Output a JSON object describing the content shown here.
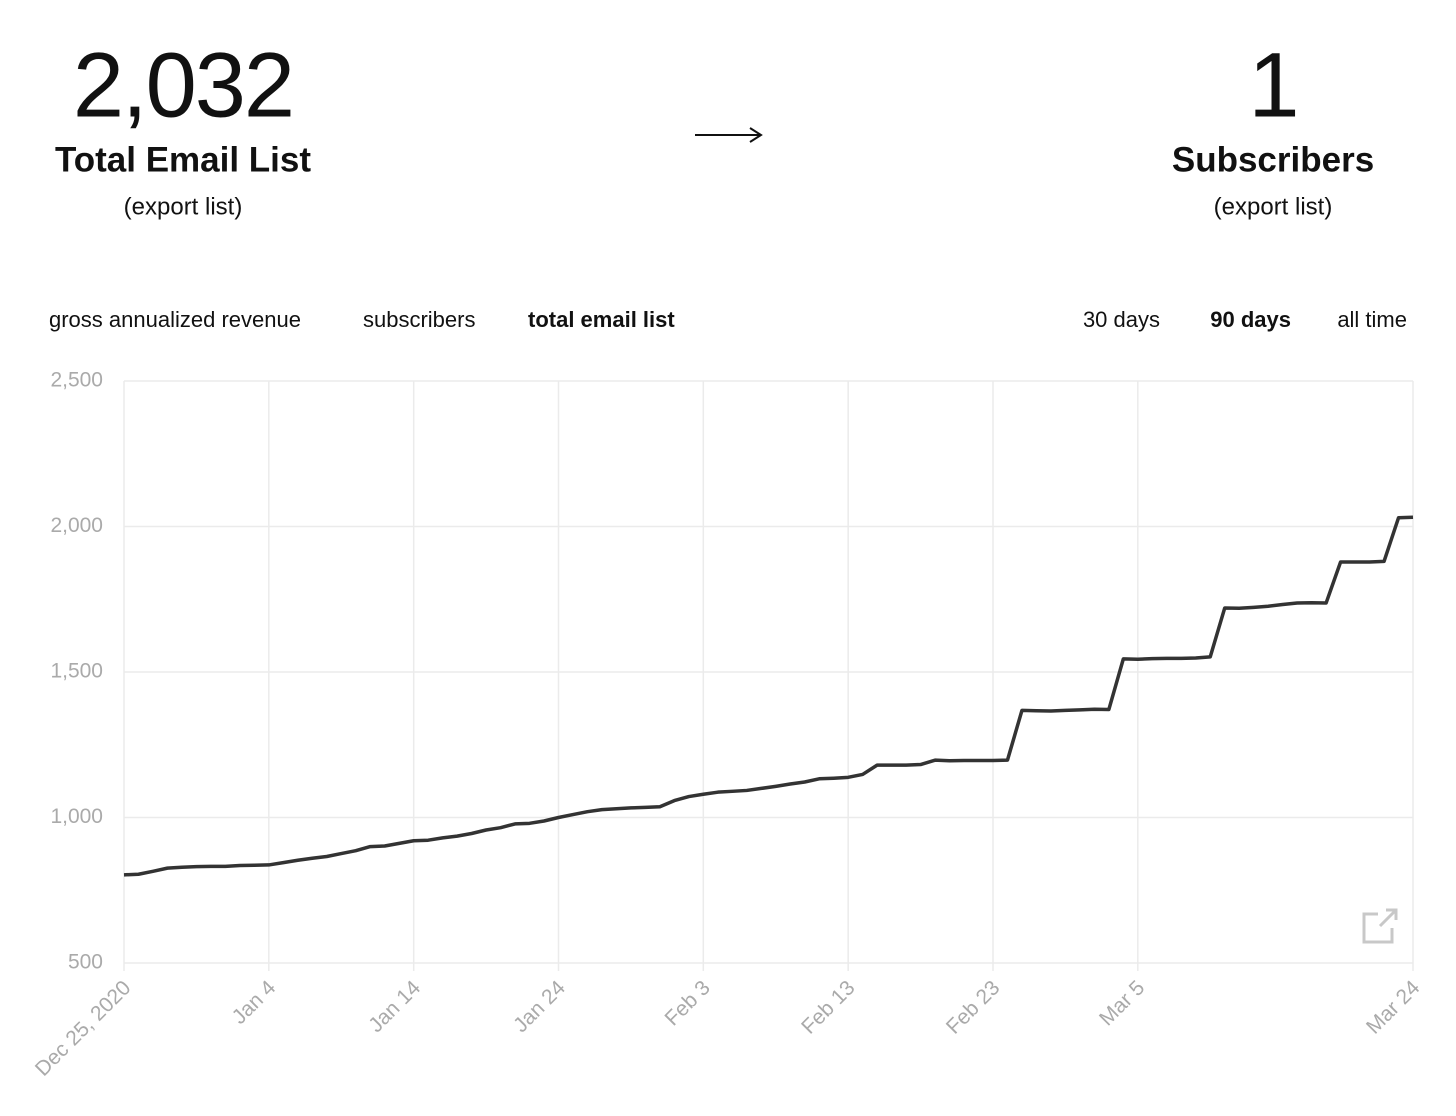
{
  "header": {
    "stats": [
      {
        "value": "2,032",
        "label": "Total Email List",
        "link": "(export list)"
      },
      {
        "value": "1",
        "label": "Subscribers",
        "link": "(export list)"
      }
    ]
  },
  "metric_tabs": [
    "gross annualized revenue",
    "subscribers",
    "total email list"
  ],
  "active_metric": 2,
  "range_tabs": [
    "30 days",
    "90 days",
    "all time"
  ],
  "active_range": 1,
  "chart_data": {
    "type": "line",
    "x": [
      0,
      1,
      2,
      3,
      4,
      5,
      6,
      7,
      8,
      9,
      10,
      11,
      12,
      13,
      14,
      15,
      16,
      17,
      18,
      19,
      20,
      21,
      22,
      23,
      24,
      25,
      26,
      27,
      28,
      29,
      30,
      31,
      32,
      33,
      34,
      35,
      36,
      37,
      38,
      39,
      40,
      41,
      42,
      43,
      44,
      45,
      46,
      47,
      48,
      49,
      50,
      51,
      52,
      53,
      54,
      55,
      56,
      57,
      58,
      59,
      60,
      61,
      62,
      63,
      64,
      65,
      66,
      67,
      68,
      69,
      70,
      71,
      72,
      73,
      74,
      75,
      76,
      77,
      78,
      79,
      80,
      81,
      82,
      83,
      84,
      85,
      86,
      87,
      88,
      89
    ],
    "values": [
      803,
      805,
      815,
      826,
      829,
      831,
      832,
      832,
      835,
      836,
      837,
      845,
      853,
      860,
      866,
      876,
      886,
      900,
      902,
      911,
      920,
      922,
      930,
      936,
      945,
      957,
      965,
      978,
      980,
      988,
      1000,
      1010,
      1020,
      1027,
      1030,
      1033,
      1035,
      1037,
      1058,
      1072,
      1080,
      1087,
      1090,
      1093,
      1100,
      1107,
      1115,
      1122,
      1133,
      1135,
      1138,
      1148,
      1180,
      1180,
      1180,
      1182,
      1197,
      1195,
      1196,
      1196,
      1196,
      1197,
      1368,
      1367,
      1366,
      1368,
      1370,
      1372,
      1371,
      1545,
      1544,
      1546,
      1547,
      1547,
      1548,
      1552,
      1720,
      1719,
      1722,
      1726,
      1732,
      1737,
      1738,
      1737,
      1878,
      1878,
      1878,
      1880,
      2030,
      2032
    ],
    "color": "#333333",
    "xlim": [
      0,
      89
    ],
    "xticks": [
      {
        "value": 0,
        "label": "Dec 25, 2020"
      },
      {
        "value": 10,
        "label": "Jan 4"
      },
      {
        "value": 20,
        "label": "Jan 14"
      },
      {
        "value": 30,
        "label": "Jan 24"
      },
      {
        "value": 40,
        "label": "Feb 3"
      },
      {
        "value": 50,
        "label": "Feb 13"
      },
      {
        "value": 60,
        "label": "Feb 23"
      },
      {
        "value": 70,
        "label": "Mar 5"
      },
      {
        "value": 89,
        "label": "Mar 24"
      }
    ],
    "ylim": [
      500,
      2500
    ],
    "yticks": [
      {
        "value": 500,
        "label": "500"
      },
      {
        "value": 1000,
        "label": "1,000"
      },
      {
        "value": 1500,
        "label": "1,500"
      },
      {
        "value": 2000,
        "label": "2,000"
      },
      {
        "value": 2500,
        "label": "2,500"
      }
    ],
    "grid": true
  }
}
